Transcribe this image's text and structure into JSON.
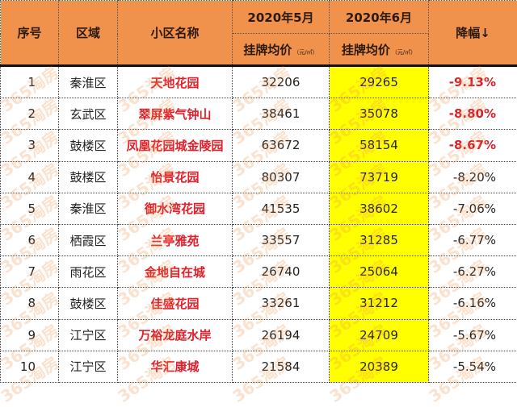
{
  "header": {
    "index": "序号",
    "district": "区域",
    "community": "小区名称",
    "may": "2020年5月",
    "june": "2020年6月",
    "price_label": "挂牌均价",
    "unit": "（元/㎡）",
    "drop": "降幅↓"
  },
  "watermark": "365淘房",
  "colors": {
    "header_bg": "#f0914c",
    "highlight_col": "#ffff00",
    "name_text": "#e0202a"
  },
  "rows": [
    {
      "index": "1",
      "district": "秦淮区",
      "name": "天地花园",
      "may": "32206",
      "june": "29265",
      "drop": "-9.13%",
      "highlight": true
    },
    {
      "index": "2",
      "district": "玄武区",
      "name": "翠屏紫气钟山",
      "may": "38461",
      "june": "35078",
      "drop": "-8.80%",
      "highlight": true
    },
    {
      "index": "3",
      "district": "鼓楼区",
      "name": "凤凰花园城金陵园",
      "may": "63672",
      "june": "58154",
      "drop": "-8.67%",
      "highlight": true
    },
    {
      "index": "4",
      "district": "鼓楼区",
      "name": "怡景花园",
      "may": "80307",
      "june": "73719",
      "drop": "-8.20%",
      "highlight": false
    },
    {
      "index": "5",
      "district": "秦淮区",
      "name": "御水湾花园",
      "may": "41535",
      "june": "38602",
      "drop": "-7.06%",
      "highlight": false
    },
    {
      "index": "6",
      "district": "栖霞区",
      "name": "兰亭雅苑",
      "may": "33557",
      "june": "31285",
      "drop": "-6.77%",
      "highlight": false
    },
    {
      "index": "7",
      "district": "雨花区",
      "name": "金地自在城",
      "may": "26740",
      "june": "25064",
      "drop": "-6.27%",
      "highlight": false
    },
    {
      "index": "8",
      "district": "鼓楼区",
      "name": "佳盛花园",
      "may": "33261",
      "june": "31212",
      "drop": "-6.16%",
      "highlight": false
    },
    {
      "index": "9",
      "district": "江宁区",
      "name": "万裕龙庭水岸",
      "may": "26194",
      "june": "24709",
      "drop": "-5.67%",
      "highlight": false
    },
    {
      "index": "10",
      "district": "江宁区",
      "name": "华汇康城",
      "may": "21584",
      "june": "20389",
      "drop": "-5.54%",
      "highlight": false
    }
  ]
}
